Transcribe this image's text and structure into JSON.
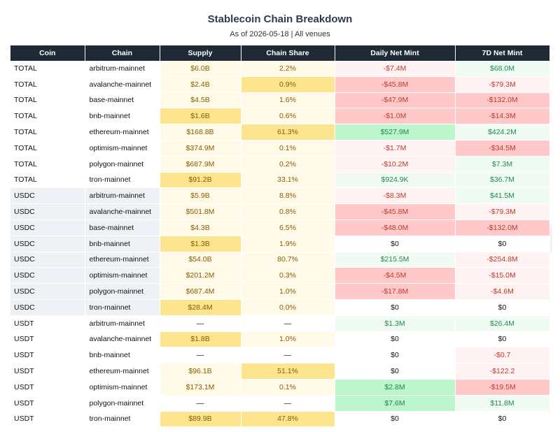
{
  "chart_data": {
    "type": "table",
    "title": "Stablecoin Chain Breakdown",
    "subtitle": "As of 2026-05-18 | All venues",
    "watermark": "amberdata",
    "columns": [
      "Coin",
      "Chain",
      "Supply",
      "Chain Share",
      "Daily Net Mint",
      "7D Net Mint"
    ],
    "rows": [
      {
        "coin": "TOTAL",
        "chain": "arbitrum-mainnet",
        "supply": "$6.0B",
        "share": "2.2%",
        "daily": "-$7.4M",
        "weekly": "$68.0M"
      },
      {
        "coin": "TOTAL",
        "chain": "avalanche-mainnet",
        "supply": "$2.4B",
        "share": "0.9%",
        "daily": "-$45.8M",
        "weekly": "-$79.3M"
      },
      {
        "coin": "TOTAL",
        "chain": "base-mainnet",
        "supply": "$4.5B",
        "share": "1.6%",
        "daily": "-$47.9M",
        "weekly": "-$132.0M"
      },
      {
        "coin": "TOTAL",
        "chain": "bnb-mainnet",
        "supply": "$1.6B",
        "share": "0.6%",
        "daily": "-$1.0M",
        "weekly": "-$14.3M"
      },
      {
        "coin": "TOTAL",
        "chain": "ethereum-mainnet",
        "supply": "$168.8B",
        "share": "61.3%",
        "daily": "$527.9M",
        "weekly": "$424.2M"
      },
      {
        "coin": "TOTAL",
        "chain": "optimism-mainnet",
        "supply": "$374.9M",
        "share": "0.1%",
        "daily": "-$1.7M",
        "weekly": "-$34.5M"
      },
      {
        "coin": "TOTAL",
        "chain": "polygon-mainnet",
        "supply": "$687.9M",
        "share": "0.2%",
        "daily": "-$10.2M",
        "weekly": "$7.3M"
      },
      {
        "coin": "TOTAL",
        "chain": "tron-mainnet",
        "supply": "$91.2B",
        "share": "33.1%",
        "daily": "$924.9K",
        "weekly": "$36.7M"
      },
      {
        "coin": "USDC",
        "chain": "arbitrum-mainnet",
        "supply": "$5.9B",
        "share": "8.8%",
        "daily": "-$8.3M",
        "weekly": "$41.5M"
      },
      {
        "coin": "USDC",
        "chain": "avalanche-mainnet",
        "supply": "$501.8M",
        "share": "0.8%",
        "daily": "-$45.8M",
        "weekly": "-$79.3M"
      },
      {
        "coin": "USDC",
        "chain": "base-mainnet",
        "supply": "$4.3B",
        "share": "6.5%",
        "daily": "-$48.0M",
        "weekly": "-$132.0M"
      },
      {
        "coin": "USDC",
        "chain": "bnb-mainnet",
        "supply": "$1.3B",
        "share": "1.9%",
        "daily": "$0",
        "weekly": "$0"
      },
      {
        "coin": "USDC",
        "chain": "ethereum-mainnet",
        "supply": "$54.0B",
        "share": "80.7%",
        "daily": "$215.5M",
        "weekly": "-$254.8M"
      },
      {
        "coin": "USDC",
        "chain": "optimism-mainnet",
        "supply": "$201.2M",
        "share": "0.3%",
        "daily": "-$4.5M",
        "weekly": "-$15.0M"
      },
      {
        "coin": "USDC",
        "chain": "polygon-mainnet",
        "supply": "$687.4M",
        "share": "1.0%",
        "daily": "-$17.8M",
        "weekly": "-$4.6M"
      },
      {
        "coin": "USDC",
        "chain": "tron-mainnet",
        "supply": "$28.4M",
        "share": "0.0%",
        "daily": "$0",
        "weekly": "$0"
      },
      {
        "coin": "USDT",
        "chain": "arbitrum-mainnet",
        "supply": "—",
        "share": "—",
        "daily": "$1.3M",
        "weekly": "$26.4M"
      },
      {
        "coin": "USDT",
        "chain": "avalanche-mainnet",
        "supply": "$1.8B",
        "share": "1.0%",
        "daily": "$0",
        "weekly": "$0"
      },
      {
        "coin": "USDT",
        "chain": "bnb-mainnet",
        "supply": "—",
        "share": "—",
        "daily": "$0",
        "weekly": "-$0.7"
      },
      {
        "coin": "USDT",
        "chain": "ethereum-mainnet",
        "supply": "$96.1B",
        "share": "51.1%",
        "daily": "$0",
        "weekly": "-$122.2"
      },
      {
        "coin": "USDT",
        "chain": "optimism-mainnet",
        "supply": "$173.1M",
        "share": "0.1%",
        "daily": "$2.8M",
        "weekly": "-$19.5M"
      },
      {
        "coin": "USDT",
        "chain": "polygon-mainnet",
        "supply": "—",
        "share": "—",
        "daily": "$7.6M",
        "weekly": "$11.8M"
      },
      {
        "coin": "USDT",
        "chain": "tron-mainnet",
        "supply": "$89.9B",
        "share": "47.8%",
        "daily": "$0",
        "weekly": "$0"
      }
    ],
    "cell_colors": {
      "coin_bg": {
        "TOTAL": "#ffffff",
        "USDC": "#eef2f7",
        "USDT": "#ffffff"
      },
      "supply_bg": [
        "#fffbe8",
        "#fffbe8",
        "#fffbe8",
        "#fde58f",
        "#fffbe8",
        "#fffbe8",
        "#fffbe8",
        "#fde58f",
        "#fffbe8",
        "#fffbe8",
        "#fffbe8",
        "#fde58f",
        "#fffbe8",
        "#fffbe8",
        "#fffbe8",
        "#fde58f",
        "#ffffff",
        "#fde58f",
        "#ffffff",
        "#fffbe8",
        "#fffbe8",
        "#ffffff",
        "#fde58f"
      ],
      "share_bg": [
        "#fffbe8",
        "#fde58f",
        "#fffbe8",
        "#fffbe8",
        "#fde58f",
        "#fffbe8",
        "#fffbe8",
        "#fffbe8",
        "#fffbe8",
        "#fffbe8",
        "#fffbe8",
        "#fffbe8",
        "#fffbe8",
        "#fffbe8",
        "#fffbe8",
        "#fffbe8",
        "#ffffff",
        "#fffbe8",
        "#ffffff",
        "#fde58f",
        "#fffbe8",
        "#ffffff",
        "#fde58f"
      ],
      "daily_bg": [
        "#fff2f2",
        "#ffc9c9",
        "#ffc9c9",
        "#ffc9c9",
        "#bdf5cd",
        "#fff2f2",
        "#fff2f2",
        "#f0fbf3",
        "#fff2f2",
        "#ffc9c9",
        "#ffc9c9",
        "#ffffff",
        "#f0fbf3",
        "#ffc9c9",
        "#ffc9c9",
        "#ffffff",
        "#f0fbf3",
        "#ffffff",
        "#ffffff",
        "#ffffff",
        "#bdf5cd",
        "#bdf5cd",
        "#ffffff"
      ],
      "weekly_bg": [
        "#f0fbf3",
        "#fff2f2",
        "#ffc9c9",
        "#ffc9c9",
        "#f0fbf3",
        "#ffc9c9",
        "#f0fbf3",
        "#f0fbf3",
        "#f0fbf3",
        "#fff2f2",
        "#ffc9c9",
        "#ffffff",
        "#fff2f2",
        "#fff2f2",
        "#fff2f2",
        "#ffffff",
        "#f0fbf3",
        "#ffffff",
        "#fff2f2",
        "#fff2f2",
        "#ffc9c9",
        "#f0fbf3",
        "#ffffff"
      ],
      "supply_text": "#8a5a00",
      "positive_text": "#1f8a4c",
      "negative_text": "#c0392b",
      "neutral_text": "#111111",
      "header_bg": "#1f2a37"
    }
  }
}
